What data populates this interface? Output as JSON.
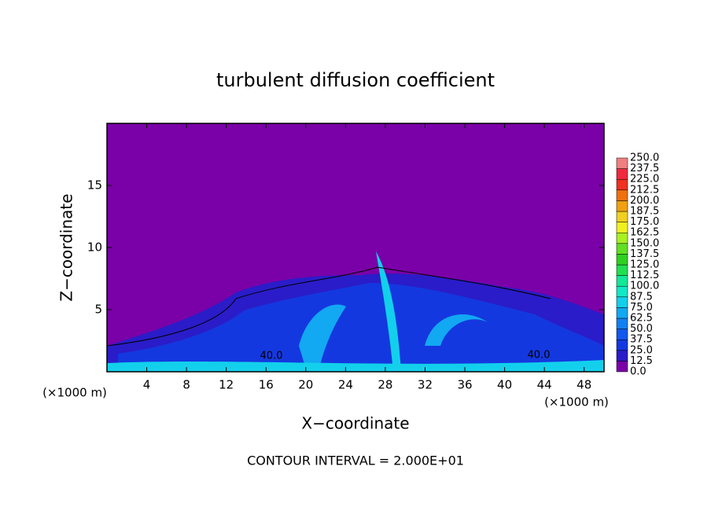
{
  "chart_data": {
    "type": "contour",
    "title": "turbulent diffusion coefficient",
    "x_label": "X−coordinate",
    "y_label": "Z−coordinate",
    "x_unit_left": "(×1000 m)",
    "x_unit_right": "(×1000 m)",
    "footer": "CONTOUR INTERVAL = 2.000E+01",
    "contour_labels": [
      "40.0",
      "40.0"
    ],
    "xlim": [
      0,
      50
    ],
    "xticks": [
      4,
      8,
      12,
      16,
      20,
      24,
      28,
      32,
      36,
      40,
      44,
      48
    ],
    "ylim": [
      0,
      20
    ],
    "yticks": [
      5,
      10,
      15
    ],
    "background_color": "#7a00a8",
    "colorbar": {
      "levels": [
        {
          "value": 0,
          "label": "0.0"
        },
        {
          "value": 12.5,
          "label": "12.5"
        },
        {
          "value": 25,
          "label": "25.0"
        },
        {
          "value": 37.5,
          "label": "37.5"
        },
        {
          "value": 50,
          "label": "50.0"
        },
        {
          "value": 62.5,
          "label": "62.5"
        },
        {
          "value": 75,
          "label": "75.0"
        },
        {
          "value": 87.5,
          "label": "87.5"
        },
        {
          "value": 100,
          "label": "100.0"
        },
        {
          "value": 112.5,
          "label": "112.5"
        },
        {
          "value": 125,
          "label": "125.0"
        },
        {
          "value": 137.5,
          "label": "137.5"
        },
        {
          "value": 150,
          "label": "150.0"
        },
        {
          "value": 162.5,
          "label": "162.5"
        },
        {
          "value": 175,
          "label": "175.0"
        },
        {
          "value": 187.5,
          "label": "187.5"
        },
        {
          "value": 200,
          "label": "200.0"
        },
        {
          "value": 212.5,
          "label": "212.5"
        },
        {
          "value": 225,
          "label": "225.0"
        },
        {
          "value": 237.5,
          "label": "237.5"
        },
        {
          "value": 250,
          "label": "250.0"
        }
      ],
      "colors": [
        "#7a00a8",
        "#2a1cc8",
        "#1438e0",
        "#1258ee",
        "#1280f2",
        "#12a8f2",
        "#12d0ec",
        "#12e8c8",
        "#12e898",
        "#20e050",
        "#30d020",
        "#60e020",
        "#a8f020",
        "#f0f020",
        "#f0d020",
        "#f0a010",
        "#f07010",
        "#f03020",
        "#f02840",
        "#f08080"
      ]
    }
  }
}
